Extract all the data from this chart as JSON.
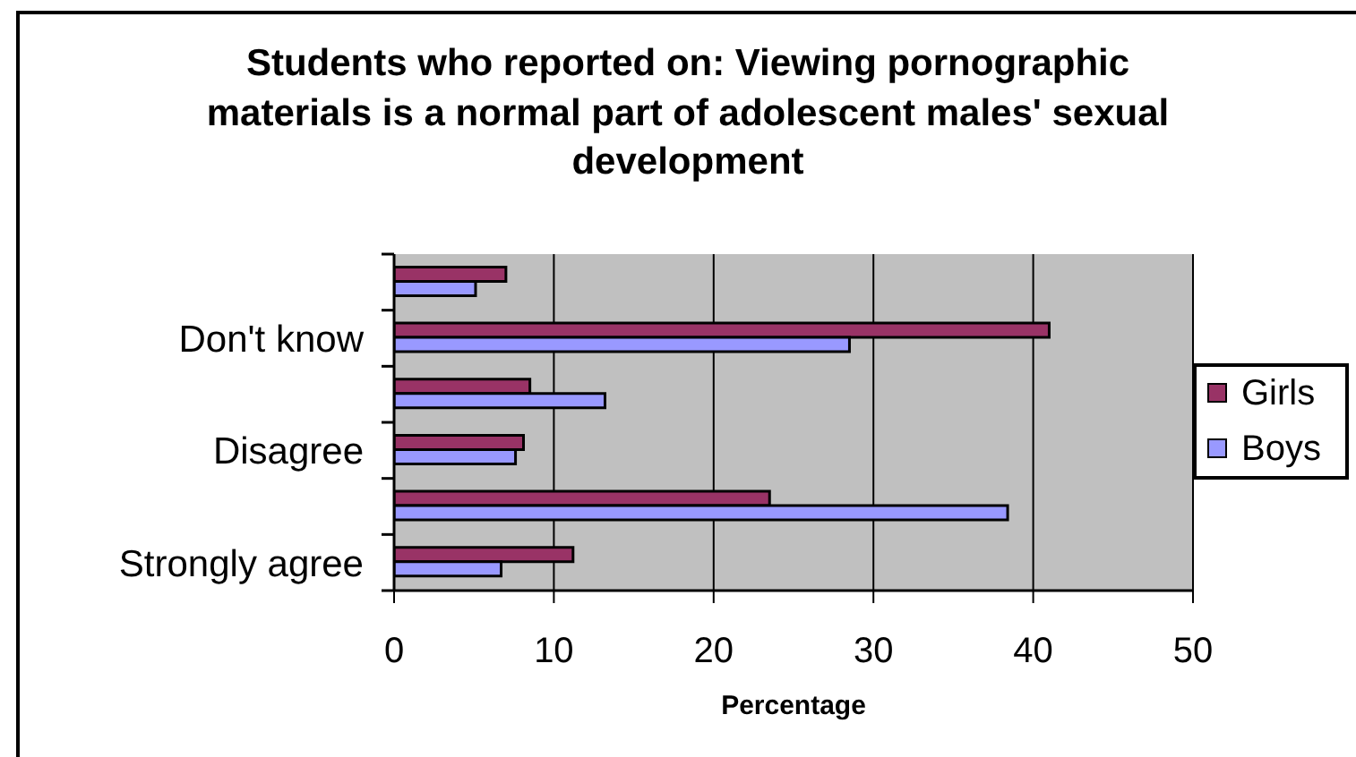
{
  "chart_data": {
    "type": "bar",
    "orientation": "horizontal",
    "title": "Students who reported on: Viewing pornographic materials is a normal part of adolescent males' sexual development",
    "xlabel": "Percentage",
    "categories": [
      null,
      "Don't know",
      null,
      "Disagree",
      null,
      "Strongly agree"
    ],
    "series": [
      {
        "name": "Girls",
        "color": "#993366",
        "values": [
          7.0,
          41.0,
          8.5,
          8.1,
          23.5,
          11.2
        ]
      },
      {
        "name": "Boys",
        "color": "#9999ff",
        "values": [
          5.1,
          28.5,
          13.2,
          7.6,
          38.4,
          6.7
        ]
      }
    ],
    "xlim": [
      0,
      50
    ],
    "xticks": [
      0,
      10,
      20,
      30,
      40,
      50
    ],
    "grid": "x",
    "legend": "right"
  }
}
